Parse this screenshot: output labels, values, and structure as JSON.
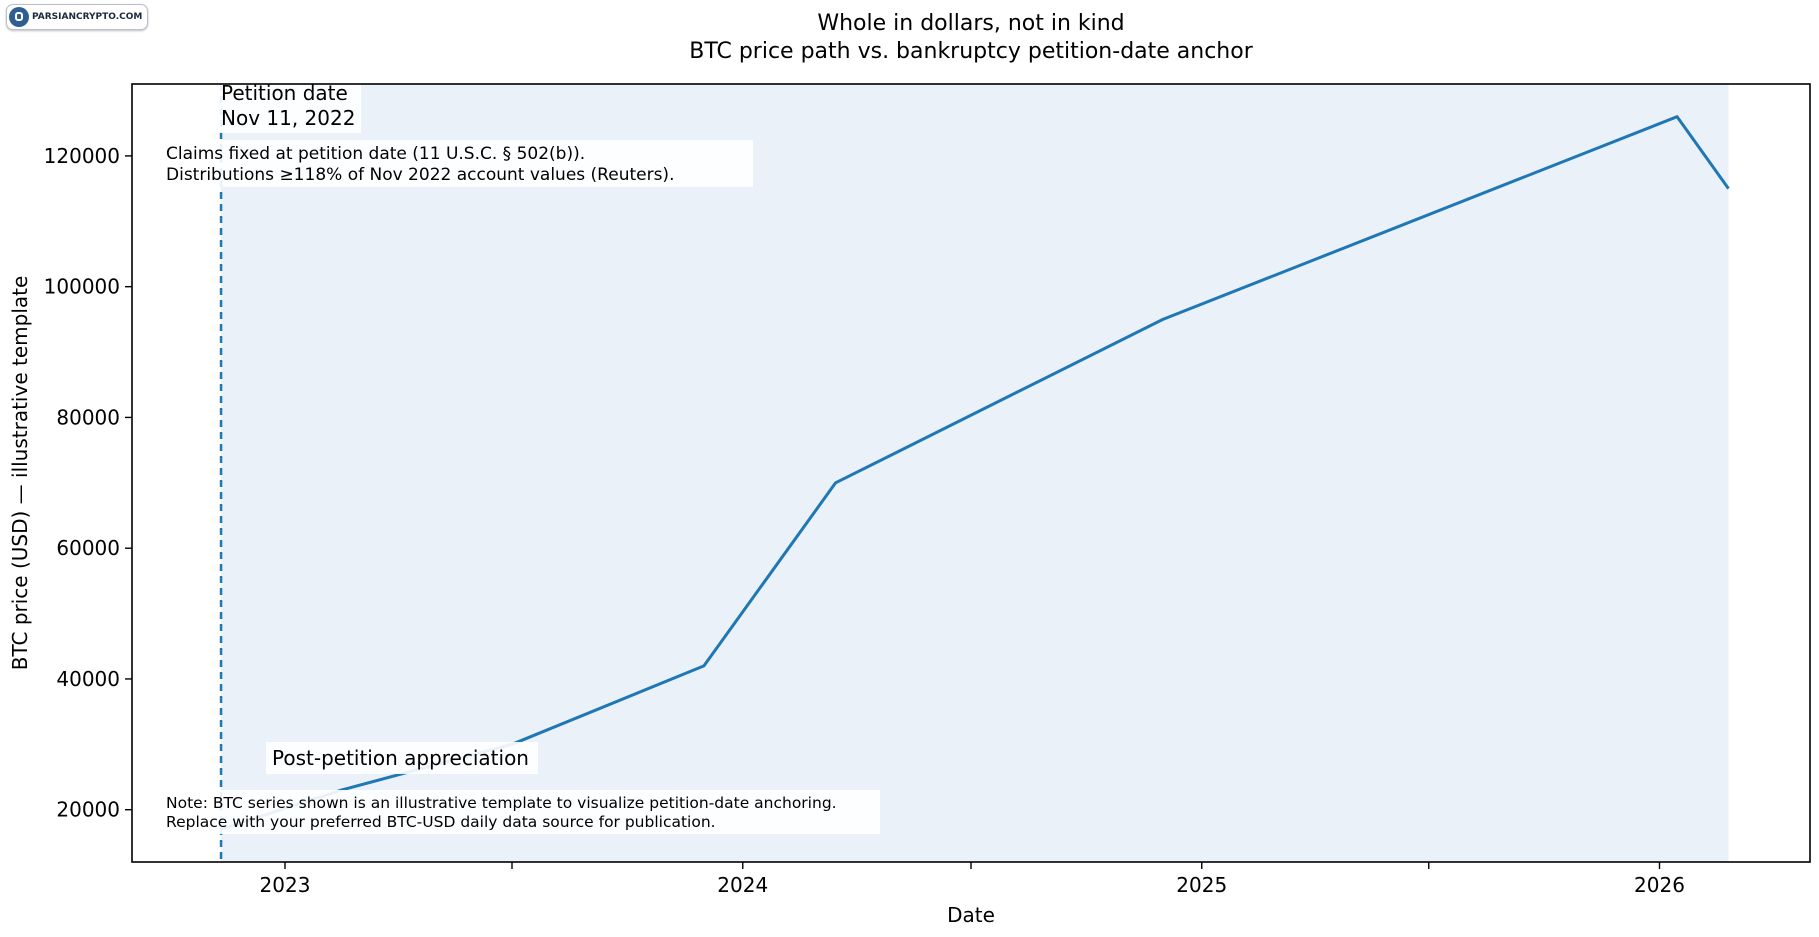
{
  "logo": {
    "text": "PARSIANCRYPTO.COM"
  },
  "chart_data": {
    "type": "line",
    "title": "Whole in dollars, not in kind",
    "subtitle": "BTC price path vs. bankruptcy petition-date anchor",
    "xlabel": "Date",
    "ylabel": "BTC price (USD) — illustrative template",
    "xlim": [
      "2022-09-01",
      "2026-05-01"
    ],
    "ylim": [
      12000,
      131000
    ],
    "x_ticks": [
      {
        "date": "2023-01-01",
        "label": "2023"
      },
      {
        "date": "2023-07-01",
        "label": ""
      },
      {
        "date": "2024-01-01",
        "label": "2024"
      },
      {
        "date": "2024-07-01",
        "label": ""
      },
      {
        "date": "2025-01-01",
        "label": "2025"
      },
      {
        "date": "2025-07-01",
        "label": ""
      },
      {
        "date": "2026-01-01",
        "label": "2026"
      }
    ],
    "y_ticks": [
      20000,
      40000,
      60000,
      80000,
      100000,
      120000
    ],
    "grid": false,
    "legend": "none",
    "colors": {
      "line": "#1f77b4",
      "shade": "#eaf1f8",
      "petition_line": "#1f77b4"
    },
    "series": [
      {
        "x": [
          "2022-11-11",
          "2023-02-15",
          "2023-07-01",
          "2023-12-01",
          "2024-03-15",
          "2024-12-01",
          "2026-01-15",
          "2026-02-25"
        ],
        "y": [
          17000,
          23000,
          30000,
          42000,
          70000,
          95000,
          126000,
          115000
        ]
      }
    ],
    "shaded_region": {
      "x_start": "2022-11-11",
      "x_end": "2026-02-25"
    },
    "petition_marker": {
      "date": "2022-11-11",
      "label_line1": "Petition date",
      "label_line2": "Nov 11, 2022"
    },
    "annotations": {
      "claims_line1": "Claims fixed at petition date (11 U.S.C. § 502(b)).",
      "claims_line2": "Distributions ≥118% of Nov 2022 account values (Reuters).",
      "appreciation": "Post-petition appreciation",
      "note_line1": "Note: BTC series shown is an illustrative template to visualize petition-date anchoring.",
      "note_line2": "Replace with your preferred BTC-USD daily data source for publication."
    }
  }
}
